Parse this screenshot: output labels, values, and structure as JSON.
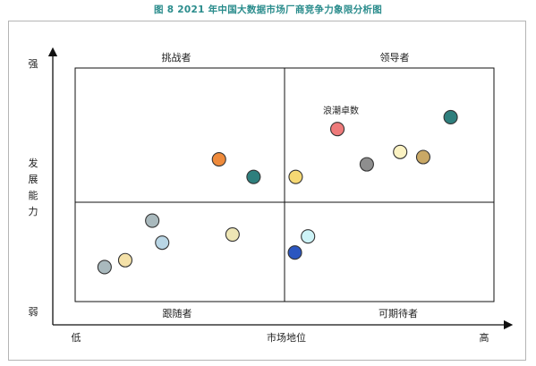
{
  "figure_title": "图 8   2021 年中国大数据市场厂商竞争力象限分析图",
  "chart_data": {
    "type": "scatter",
    "title": "图 8   2021 年中国大数据市场厂商竞争力象限分析图",
    "xlabel": "市场地位",
    "ylabel": "发展能力",
    "x_low_label": "低",
    "x_high_label": "高",
    "y_high_label": "强",
    "y_low_label": "弱",
    "xlim": [
      0,
      100
    ],
    "ylim": [
      0,
      100
    ],
    "quadrant_divider": {
      "x": 50,
      "y": 50
    },
    "quadrants": {
      "top_left": "挑战者",
      "top_right": "领导者",
      "bottom_left": "跟随者",
      "bottom_right": "可期待者"
    },
    "annotation": {
      "text": "浪潮卓数",
      "point_index": 14
    },
    "points": [
      {
        "x": 4.7,
        "y": 13.4,
        "color": "#a9b9bd"
      },
      {
        "x": 9.9,
        "y": 17.3,
        "color": "#f4e1a8"
      },
      {
        "x": 19.2,
        "y": 27.2,
        "color": "#b9d6e5"
      },
      {
        "x": 16.7,
        "y": 39.6,
        "color": "#a9b9bd"
      },
      {
        "x": 36.9,
        "y": 31.8,
        "color": "#eee6b5"
      },
      {
        "x": 33.5,
        "y": 74.2,
        "color": "#ee8a3b"
      },
      {
        "x": 42.2,
        "y": 64.3,
        "color": "#2e7f7d"
      },
      {
        "x": 52.6,
        "y": 21.6,
        "color": "#2b56c0"
      },
      {
        "x": 55.9,
        "y": 30.7,
        "color": "#cdf3f7"
      },
      {
        "x": 52.8,
        "y": 64.3,
        "color": "#f6d873"
      },
      {
        "x": 70.7,
        "y": 71.4,
        "color": "#8e8e8e"
      },
      {
        "x": 79.1,
        "y": 78.4,
        "color": "#fbf2c2"
      },
      {
        "x": 84.9,
        "y": 75.5,
        "color": "#c9a865"
      },
      {
        "x": 91.8,
        "y": 98.0,
        "color": "#2e7f7d"
      },
      {
        "x": 63.3,
        "y": 91.3,
        "color": "#ee7a7a"
      }
    ]
  }
}
